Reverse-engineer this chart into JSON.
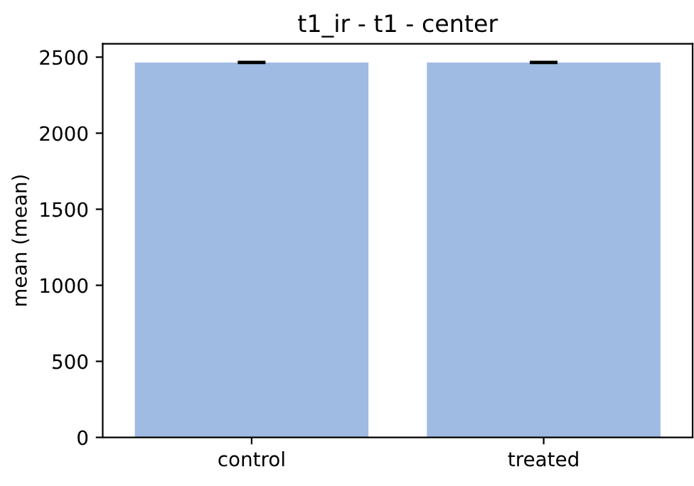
{
  "chart_data": {
    "type": "bar",
    "title": "t1_ir - t1 - center",
    "ylabel": "mean (mean)",
    "categories": [
      "control",
      "treated"
    ],
    "series": [
      {
        "color": "#a0bbe3",
        "values": [
          2465,
          2465
        ],
        "errors": [
          5,
          5
        ]
      }
    ],
    "ylim": [
      0,
      2588
    ],
    "yticks": [
      0,
      500,
      1000,
      1500,
      2000,
      2500
    ],
    "grid": false,
    "legend": false
  }
}
